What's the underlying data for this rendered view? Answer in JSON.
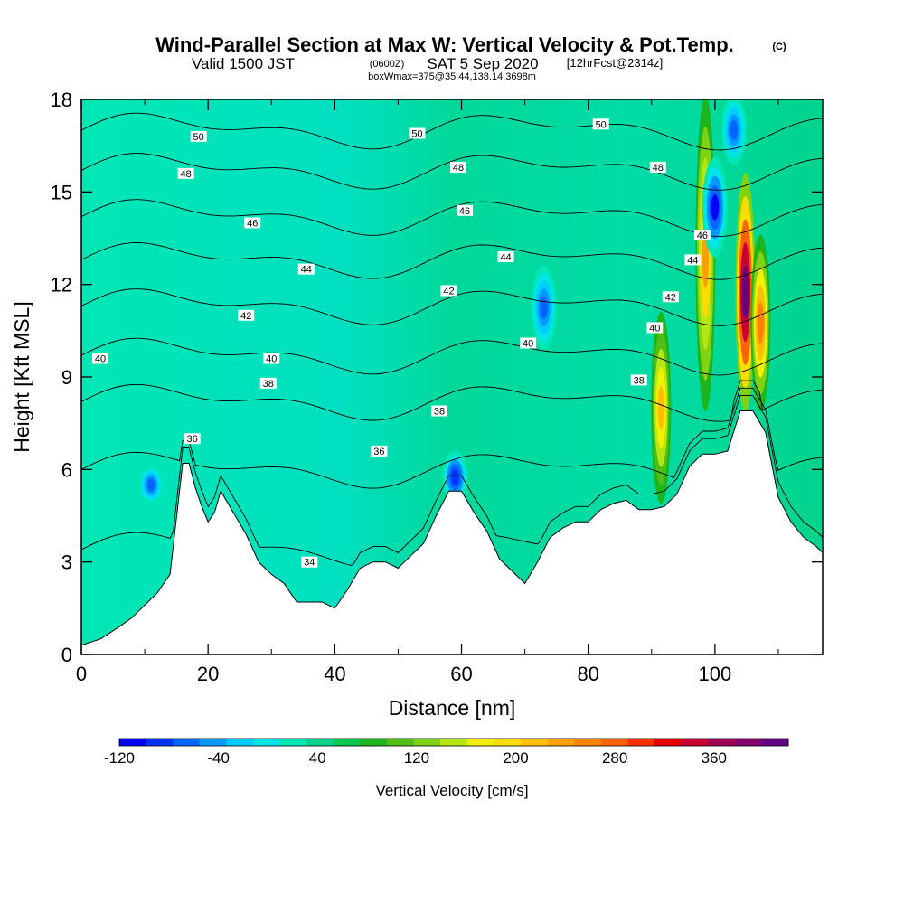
{
  "title": {
    "main": "Wind-Parallel Section at Max W: Vertical Velocity & Pot.Temp.",
    "copyright": "(C)",
    "valid_prefix": "Valid 1500 JST",
    "valid_utc": "(0600Z)",
    "valid_date": "SAT 5 Sep 2020",
    "fcst": "[12hrFcst@2314z]",
    "boxwmax": "boxWmax=375@35.44,138.14,3698m"
  },
  "colors": {
    "terrain": "#ffffff",
    "contour": "#000000",
    "scale": [
      "#0000ff",
      "#0033ff",
      "#0066ff",
      "#0099ff",
      "#00ccff",
      "#00e6e6",
      "#00e6b4",
      "#00d28c",
      "#00c850",
      "#1eb41e",
      "#50be14",
      "#82d214",
      "#b4e614",
      "#f0f000",
      "#ffdc00",
      "#ffbe00",
      "#ffa000",
      "#ff8200",
      "#ff6400",
      "#ff3200",
      "#e60000",
      "#c80032",
      "#a00050",
      "#82006e",
      "#640082"
    ]
  },
  "chart_data": {
    "type": "heatmap",
    "xlabel": "Distance [nm]",
    "ylabel": "Height [Kft MSL]",
    "xlim": [
      0,
      117
    ],
    "ylim": [
      0,
      18
    ],
    "x_ticks": [
      0,
      20,
      40,
      60,
      80,
      100
    ],
    "y_ticks": [
      0,
      3,
      6,
      9,
      12,
      15,
      18
    ],
    "colorbar": {
      "label": "Vertical Velocity [cm/s]",
      "min": -120,
      "max": 420,
      "step": 20,
      "tick_values": [
        -120,
        -40,
        40,
        120,
        200,
        280,
        360
      ],
      "tick_labels": [
        "-120",
        "-40",
        "40",
        "120",
        "200",
        "280",
        "360"
      ]
    },
    "terrain_kft": {
      "x": [
        0,
        3,
        6,
        8,
        10,
        12,
        14,
        15,
        16,
        17,
        18,
        19,
        20,
        21,
        22,
        24,
        26,
        28,
        30,
        32,
        34,
        36,
        38,
        40,
        42,
        44,
        46,
        48,
        50,
        52,
        54,
        56,
        58,
        60,
        62,
        64,
        66,
        68,
        70,
        72,
        74,
        76,
        78,
        80,
        82,
        84,
        86,
        88,
        90,
        92,
        94,
        96,
        98,
        100,
        102,
        104,
        106,
        108,
        110,
        112,
        114,
        116,
        117
      ],
      "y": [
        0.3,
        0.5,
        0.9,
        1.2,
        1.6,
        2.0,
        2.6,
        4.4,
        6.2,
        6.2,
        5.4,
        4.8,
        4.3,
        4.6,
        5.3,
        4.6,
        3.9,
        3.0,
        2.6,
        2.3,
        1.7,
        1.7,
        1.7,
        1.5,
        2.1,
        2.8,
        3.0,
        3.0,
        2.8,
        3.2,
        3.6,
        4.5,
        5.3,
        5.3,
        4.6,
        4.0,
        3.1,
        2.7,
        2.3,
        3.0,
        3.8,
        4.1,
        4.3,
        4.3,
        4.7,
        4.9,
        5.0,
        4.7,
        4.7,
        4.8,
        5.2,
        6.1,
        6.5,
        6.5,
        6.6,
        7.9,
        7.9,
        7.2,
        5.1,
        4.3,
        3.8,
        3.5,
        3.3
      ]
    },
    "theta_contours_K": [
      34,
      36,
      38,
      40,
      42,
      44,
      46,
      48,
      50
    ],
    "theta_labels": [
      {
        "text": "50",
        "x": 18.5,
        "y": 16.8
      },
      {
        "text": "50",
        "x": 53,
        "y": 16.9
      },
      {
        "text": "50",
        "x": 82,
        "y": 17.2
      },
      {
        "text": "48",
        "x": 16.5,
        "y": 15.6
      },
      {
        "text": "48",
        "x": 59.5,
        "y": 15.8
      },
      {
        "text": "48",
        "x": 91,
        "y": 15.8
      },
      {
        "text": "46",
        "x": 27,
        "y": 14.0
      },
      {
        "text": "46",
        "x": 60.5,
        "y": 14.4
      },
      {
        "text": "46",
        "x": 98,
        "y": 13.6
      },
      {
        "text": "44",
        "x": 35.5,
        "y": 12.5
      },
      {
        "text": "44",
        "x": 67,
        "y": 12.9
      },
      {
        "text": "44",
        "x": 96.5,
        "y": 12.8
      },
      {
        "text": "42",
        "x": 26,
        "y": 11.0
      },
      {
        "text": "42",
        "x": 58,
        "y": 11.8
      },
      {
        "text": "42",
        "x": 93,
        "y": 11.6
      },
      {
        "text": "40",
        "x": 3,
        "y": 9.6
      },
      {
        "text": "40",
        "x": 30,
        "y": 9.6
      },
      {
        "text": "40",
        "x": 70.5,
        "y": 10.1
      },
      {
        "text": "40",
        "x": 90.5,
        "y": 10.6
      },
      {
        "text": "38",
        "x": 29.5,
        "y": 8.8
      },
      {
        "text": "38",
        "x": 56.5,
        "y": 7.9
      },
      {
        "text": "38",
        "x": 88,
        "y": 8.9
      },
      {
        "text": "36",
        "x": 17.5,
        "y": 7.0
      },
      {
        "text": "36",
        "x": 47,
        "y": 6.6
      },
      {
        "text": "34",
        "x": 36,
        "y": 3.0
      }
    ],
    "updraft_cores": [
      {
        "x": 91.5,
        "y_range": [
          5.0,
          11.0
        ],
        "w_max": 180
      },
      {
        "x": 98.5,
        "y_range": [
          8.0,
          18.0
        ],
        "w_max": 200
      },
      {
        "x": 104.8,
        "y_range": [
          8.0,
          15.5
        ],
        "w_max": 375
      },
      {
        "x": 107.2,
        "y_range": [
          8.0,
          13.5
        ],
        "w_max": 220
      }
    ],
    "downdraft_cores": [
      {
        "x": 100,
        "y_range": [
          13.0,
          16.0
        ],
        "w_min": -110
      },
      {
        "x": 103,
        "y_range": [
          16.0,
          18.0
        ],
        "w_min": -80
      },
      {
        "x": 73,
        "y_range": [
          10.0,
          12.5
        ],
        "w_min": -70
      },
      {
        "x": 59,
        "y_range": [
          5.0,
          6.5
        ],
        "w_min": -100
      },
      {
        "x": 11,
        "y_range": [
          5.0,
          6.0
        ],
        "w_min": -70
      }
    ]
  }
}
